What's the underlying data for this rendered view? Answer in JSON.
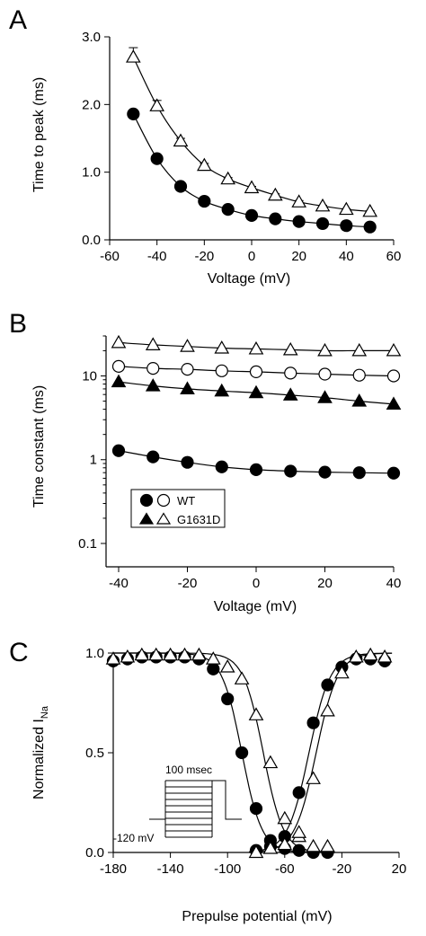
{
  "chart_data": [
    {
      "panel": "A",
      "type": "scatter",
      "xlabel": "Voltage (mV)",
      "ylabel": "Time to peak (ms)",
      "xlim": [
        -60,
        60
      ],
      "ylim": [
        0.0,
        3.0
      ],
      "xticks": [
        -60,
        -40,
        -20,
        0,
        20,
        40,
        60
      ],
      "xtick_labels": [
        "-60",
        "-40",
        "-20",
        "0",
        "20",
        "40",
        "60"
      ],
      "yticks": [
        0.0,
        1.0,
        2.0,
        3.0
      ],
      "ytick_labels": [
        "0.0",
        "1.0",
        "2.0",
        "3.0"
      ],
      "series": [
        {
          "marker": "filled-circle",
          "x": [
            -50,
            -40,
            -30,
            -20,
            -10,
            0,
            10,
            20,
            30,
            40,
            50
          ],
          "y": [
            1.86,
            1.2,
            0.79,
            0.57,
            0.45,
            0.36,
            0.31,
            0.27,
            0.24,
            0.21,
            0.19
          ],
          "err": [
            0.05,
            0.03,
            0.02,
            0.02,
            0.02,
            0.01,
            0.01,
            0.01,
            0.01,
            0.01,
            0.01
          ]
        },
        {
          "marker": "open-triangle",
          "x": [
            -50,
            -40,
            -30,
            -20,
            -10,
            0,
            10,
            20,
            30,
            40,
            50
          ],
          "y": [
            2.7,
            1.98,
            1.46,
            1.1,
            0.9,
            0.77,
            0.66,
            0.56,
            0.5,
            0.45,
            0.42
          ],
          "err": [
            0.14,
            0.08,
            0.04,
            0.03,
            0.02,
            0.02,
            0.02,
            0.02,
            0.01,
            0.01,
            0.01
          ]
        }
      ]
    },
    {
      "panel": "B",
      "type": "scatter",
      "xlabel": "Voltage (mV)",
      "ylabel": "Time constant (ms)",
      "log_y": true,
      "xlim": [
        -40,
        40
      ],
      "ylim": [
        0.1,
        30
      ],
      "xticks": [
        -40,
        -20,
        0,
        20,
        40
      ],
      "xtick_labels": [
        "-40",
        "-20",
        "0",
        "20",
        "40"
      ],
      "yticks": [
        0.1,
        1,
        10
      ],
      "ytick_labels": [
        "0.1",
        "1",
        "10"
      ],
      "series": [
        {
          "marker": "open-triangle",
          "x": [
            -40,
            -30,
            -20,
            -10,
            0,
            10,
            20,
            30,
            40
          ],
          "y": [
            25,
            23.5,
            22.5,
            21.5,
            21,
            20.5,
            20,
            20,
            20
          ]
        },
        {
          "marker": "open-circle",
          "x": [
            -40,
            -30,
            -20,
            -10,
            0,
            10,
            20,
            30,
            40
          ],
          "y": [
            13,
            12.3,
            12,
            11.5,
            11.2,
            10.8,
            10.5,
            10.2,
            10
          ]
        },
        {
          "marker": "filled-triangle",
          "x": [
            -40,
            -30,
            -20,
            -10,
            0,
            10,
            20,
            30,
            40
          ],
          "y": [
            8.5,
            7.6,
            7,
            6.6,
            6.3,
            5.9,
            5.5,
            5,
            4.6
          ]
        },
        {
          "marker": "filled-circle",
          "x": [
            -40,
            -30,
            -20,
            -10,
            0,
            10,
            20,
            30,
            40
          ],
          "y": [
            1.28,
            1.08,
            0.93,
            0.82,
            0.76,
            0.73,
            0.71,
            0.7,
            0.69
          ]
        }
      ],
      "legend": [
        {
          "label": "WT",
          "markers": [
            "filled-circle",
            "open-circle"
          ]
        },
        {
          "label": "G1631D",
          "markers": [
            "filled-triangle",
            "open-triangle"
          ]
        }
      ],
      "legend_position": "bottom-left"
    },
    {
      "panel": "C",
      "type": "scatter",
      "xlabel": "Prepulse potential (mV)",
      "ylabel_main": "Normalized I",
      "ylabel_sub": "Na",
      "xlim": [
        -180,
        20
      ],
      "ylim": [
        0.0,
        1.0
      ],
      "xticks": [
        -180,
        -140,
        -100,
        -60,
        -20,
        20
      ],
      "xtick_labels": [
        "-180",
        "-140",
        "-100",
        "-60",
        "-20",
        "20"
      ],
      "yticks": [
        0.0,
        0.5,
        1.0
      ],
      "ytick_labels": [
        "0.0",
        "0.5",
        "1.0"
      ],
      "series": [
        {
          "marker": "filled-circle",
          "curve": "inactivation",
          "x": [
            -180,
            -170,
            -160,
            -150,
            -140,
            -130,
            -120,
            -110,
            -100,
            -90,
            -80,
            -70,
            -60,
            -50,
            -40,
            -30
          ],
          "y": [
            0.96,
            0.97,
            0.98,
            0.98,
            0.98,
            0.98,
            0.97,
            0.92,
            0.77,
            0.5,
            0.22,
            0.06,
            0.02,
            0.01,
            0.0,
            0.0
          ]
        },
        {
          "marker": "open-triangle",
          "curve": "inactivation",
          "x": [
            -180,
            -170,
            -160,
            -150,
            -140,
            -130,
            -120,
            -110,
            -100,
            -90,
            -80,
            -70,
            -60,
            -50,
            -40,
            -30
          ],
          "y": [
            0.97,
            0.98,
            0.99,
            0.99,
            0.99,
            0.99,
            0.99,
            0.97,
            0.93,
            0.87,
            0.69,
            0.45,
            0.17,
            0.08,
            0.03,
            0.03
          ]
        },
        {
          "marker": "filled-circle",
          "curve": "activation",
          "x": [
            -80,
            -70,
            -60,
            -50,
            -40,
            -30,
            -20,
            -10,
            0,
            10
          ],
          "y": [
            0.01,
            0.03,
            0.08,
            0.3,
            0.65,
            0.84,
            0.93,
            0.97,
            0.97,
            0.96
          ]
        },
        {
          "marker": "open-triangle",
          "curve": "activation",
          "x": [
            -80,
            -70,
            -60,
            -50,
            -40,
            -30,
            -20,
            -10,
            0,
            10
          ],
          "y": [
            0.0,
            0.02,
            0.04,
            0.1,
            0.37,
            0.71,
            0.9,
            0.98,
            0.99,
            0.98
          ]
        }
      ],
      "inset": {
        "top_label": "100 msec",
        "left_label": "-120 mV"
      }
    }
  ]
}
